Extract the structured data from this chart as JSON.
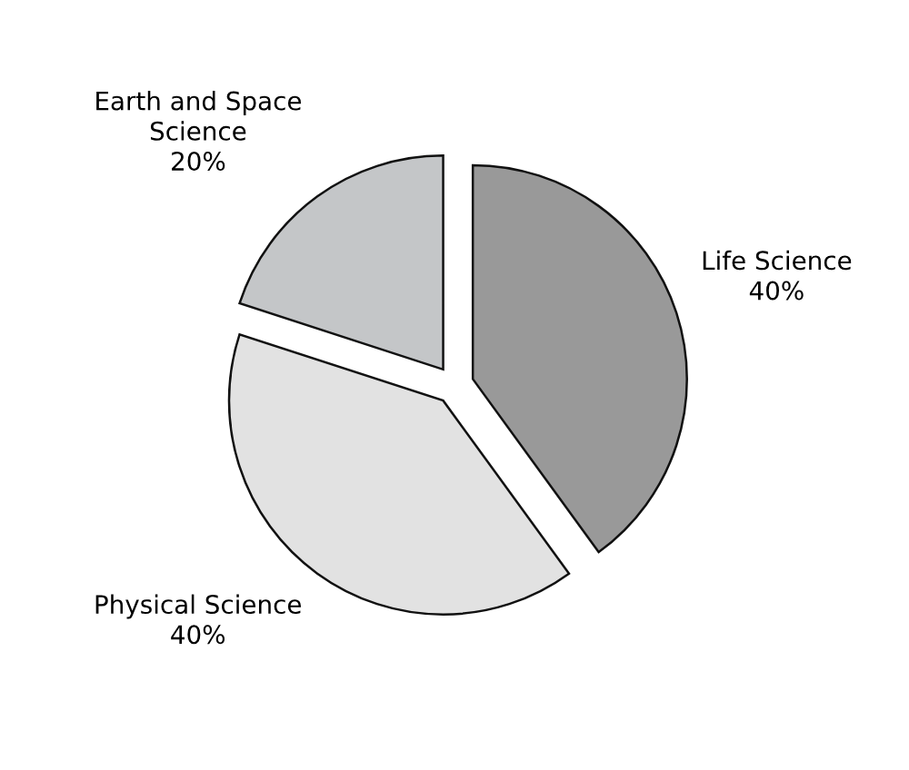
{
  "chart_data": {
    "type": "pie",
    "categories": [
      "Life Science",
      "Physical Science",
      "Earth and Space Science"
    ],
    "values": [
      40,
      40,
      20
    ],
    "value_labels": [
      "40%",
      "40%",
      "20%"
    ],
    "colors": [
      "#999999",
      "#e2e2e2",
      "#c4c6c8"
    ],
    "legend": false
  }
}
